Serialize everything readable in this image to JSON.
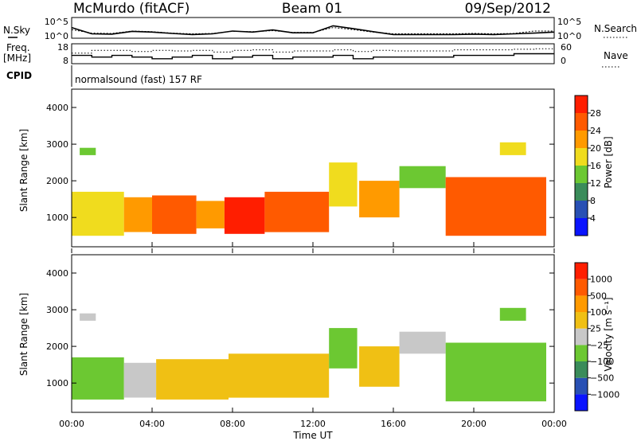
{
  "header": {
    "station": "McMurdo (fitACF)",
    "beam": "Beam 01",
    "date": "09/Sep/2012"
  },
  "noise_panel": {
    "left_label": "N.Sky",
    "right_label": "N.Search",
    "left_ticks": [
      "10^5",
      "10^0"
    ],
    "right_ticks": [
      "10^5",
      "10^0"
    ]
  },
  "freq_panel": {
    "left_label_line1": "Freq.",
    "left_label_line2": "[MHz]",
    "right_label": "Nave",
    "left_ticks": [
      "18",
      "8"
    ],
    "right_ticks": [
      "60",
      "0"
    ]
  },
  "cpid": {
    "label": "CPID",
    "value": "normalsound (fast) 157 RF"
  },
  "power_panel": {
    "ylabel": "Slant Range [km]",
    "yticks": [
      "4000",
      "3000",
      "2000",
      "1000"
    ],
    "colorbar_label": "Power [dB]",
    "colorbar_ticks": [
      "28",
      "24",
      "20",
      "16",
      "12",
      "8",
      "4"
    ]
  },
  "velocity_panel": {
    "ylabel": "Slant Range [km]",
    "yticks": [
      "4000",
      "3000",
      "2000",
      "1000"
    ],
    "colorbar_label": "Velocity [m s⁻¹]",
    "colorbar_ticks": [
      "1000",
      "500",
      "100",
      "25",
      "−25",
      "−100",
      "−500",
      "−1000"
    ]
  },
  "xaxis": {
    "label": "Time UT",
    "ticks": [
      "00:00",
      "04:00",
      "08:00",
      "12:00",
      "16:00",
      "20:00",
      "00:00"
    ]
  },
  "colors": {
    "power_scale": [
      "#0a14ff",
      "#2850b4",
      "#3a8c5a",
      "#6cc832",
      "#f0dc1e",
      "#ff9a00",
      "#ff5a00",
      "#ff1e00"
    ],
    "velocity_scale": [
      "#ff1e00",
      "#ff5a00",
      "#ff9a00",
      "#f0c014",
      "#c8c8c8",
      "#6cc832",
      "#3a8c5a",
      "#2850b4",
      "#0a14ff"
    ]
  },
  "chart_data": [
    {
      "type": "line",
      "title": "N.Sky / N.Search",
      "x_unit": "hours UT",
      "x": [
        0,
        1,
        2,
        3,
        4,
        5,
        6,
        7,
        8,
        9,
        10,
        11,
        12,
        13,
        14,
        15,
        16,
        17,
        18,
        19,
        20,
        21,
        22,
        23,
        24
      ],
      "series": [
        {
          "name": "N.Sky",
          "values": [
            2.6,
            0.8,
            0.7,
            1.5,
            1.3,
            0.9,
            0.6,
            0.8,
            1.6,
            1.3,
            1.9,
            1.1,
            1.1,
            3.1,
            2.3,
            1.4,
            0.6,
            0.6,
            0.6,
            0.6,
            0.7,
            0.6,
            0.8,
            1.0,
            1.3
          ]
        },
        {
          "name": "N.Search",
          "values": [
            2.0,
            1.0,
            0.9,
            1.6,
            1.4,
            1.0,
            0.8,
            0.9,
            1.5,
            1.4,
            1.7,
            1.2,
            1.2,
            2.6,
            2.0,
            1.3,
            0.8,
            0.8,
            0.8,
            0.8,
            0.9,
            0.8,
            0.9,
            1.6,
            1.6
          ]
        }
      ],
      "ylim": [
        0,
        5
      ],
      "yscale": "log10"
    },
    {
      "type": "line",
      "title": "Freq. / Nave",
      "x_unit": "hours UT",
      "x": [
        0,
        1,
        2,
        3,
        4,
        5,
        6,
        7,
        8,
        9,
        10,
        11,
        12,
        13,
        14,
        15,
        16,
        17,
        18,
        19,
        20,
        21,
        22,
        23,
        24
      ],
      "series": [
        {
          "name": "Freq.",
          "values": [
            12,
            11,
            12,
            11,
            10,
            11,
            12,
            10,
            11,
            12,
            10,
            11,
            11,
            12,
            10,
            11,
            11,
            11,
            11,
            12,
            12,
            12,
            13,
            13,
            13
          ]
        },
        {
          "name": "Nave",
          "values": [
            32,
            42,
            42,
            38,
            42,
            40,
            42,
            36,
            42,
            44,
            36,
            40,
            40,
            44,
            38,
            42,
            40,
            40,
            40,
            44,
            44,
            44,
            46,
            48,
            48
          ]
        }
      ],
      "ylim_freq": [
        8,
        18
      ],
      "ylim_nave": [
        0,
        60
      ]
    },
    {
      "type": "heatmap",
      "title": "Power",
      "quantity": "Power [dB]",
      "x_unit": "hours UT",
      "y_unit": "Slant Range [km]",
      "xlim": [
        0,
        24
      ],
      "ylim": [
        200,
        4500
      ],
      "zlim": [
        0,
        30
      ],
      "regions": [
        {
          "t": [
            0.0,
            2.6
          ],
          "range": [
            500,
            1700
          ],
          "value": 17
        },
        {
          "t": [
            0.4,
            1.2
          ],
          "range": [
            2700,
            2900
          ],
          "value": 14
        },
        {
          "t": [
            2.6,
            4.0
          ],
          "range": [
            600,
            1550
          ],
          "value": 22
        },
        {
          "t": [
            4.0,
            6.2
          ],
          "range": [
            550,
            1600
          ],
          "value": 25
        },
        {
          "t": [
            6.2,
            7.6
          ],
          "range": [
            700,
            1450
          ],
          "value": 22
        },
        {
          "t": [
            7.6,
            9.6
          ],
          "range": [
            550,
            1550
          ],
          "value": 27
        },
        {
          "t": [
            9.6,
            12.8
          ],
          "range": [
            600,
            1700
          ],
          "value": 25
        },
        {
          "t": [
            12.8,
            14.2
          ],
          "range": [
            1300,
            2500
          ],
          "value": 18
        },
        {
          "t": [
            14.3,
            16.3
          ],
          "range": [
            1000,
            2000
          ],
          "value": 21
        },
        {
          "t": [
            16.3,
            18.6
          ],
          "range": [
            1800,
            2400
          ],
          "value": 12
        },
        {
          "t": [
            18.6,
            23.6
          ],
          "range": [
            500,
            2100
          ],
          "value": 24
        },
        {
          "t": [
            21.3,
            22.6
          ],
          "range": [
            2700,
            3050
          ],
          "value": 16
        }
      ]
    },
    {
      "type": "heatmap",
      "title": "Velocity",
      "quantity": "Velocity [m s⁻¹]",
      "x_unit": "hours UT",
      "y_unit": "Slant Range [km]",
      "xlim": [
        0,
        24
      ],
      "ylim": [
        200,
        4500
      ],
      "zlim": [
        -1000,
        1000
      ],
      "regions": [
        {
          "t": [
            0.0,
            2.6
          ],
          "range": [
            550,
            1700
          ],
          "value": -120
        },
        {
          "t": [
            0.4,
            1.2
          ],
          "range": [
            2700,
            2900
          ],
          "value": 60
        },
        {
          "t": [
            2.6,
            4.2
          ],
          "range": [
            600,
            1550
          ],
          "value": 70
        },
        {
          "t": [
            4.2,
            7.8
          ],
          "range": [
            550,
            1650
          ],
          "value": 150
        },
        {
          "t": [
            7.8,
            12.8
          ],
          "range": [
            600,
            1800
          ],
          "value": 220
        },
        {
          "t": [
            12.8,
            14.2
          ],
          "range": [
            1400,
            2500
          ],
          "value": -200
        },
        {
          "t": [
            14.3,
            16.3
          ],
          "range": [
            900,
            2000
          ],
          "value": 160
        },
        {
          "t": [
            16.3,
            18.6
          ],
          "range": [
            1800,
            2400
          ],
          "value": 20
        },
        {
          "t": [
            18.6,
            23.6
          ],
          "range": [
            500,
            2100
          ],
          "value": -220
        },
        {
          "t": [
            21.3,
            22.6
          ],
          "range": [
            2700,
            3050
          ],
          "value": -150
        }
      ]
    }
  ]
}
